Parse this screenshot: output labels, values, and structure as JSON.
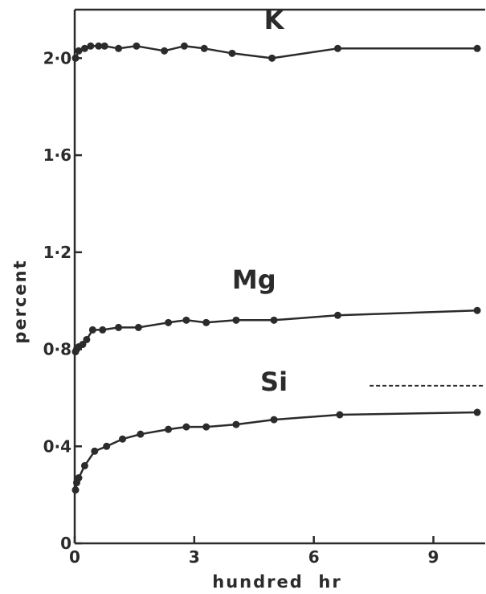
{
  "chart_data": {
    "type": "line",
    "xlabel": "hundred  hr",
    "ylabel": "percent",
    "xlim": [
      0,
      10.3
    ],
    "ylim": [
      0,
      2.2
    ],
    "xticks": [
      {
        "value": 0,
        "label": "0"
      },
      {
        "value": 3,
        "label": "3"
      },
      {
        "value": 6,
        "label": "6"
      },
      {
        "value": 9,
        "label": "9"
      }
    ],
    "yticks": [
      {
        "value": 0,
        "label": "0"
      },
      {
        "value": 0.4,
        "label": "0·4"
      },
      {
        "value": 0.8,
        "label": "0·8"
      },
      {
        "value": 1.2,
        "label": "1·2"
      },
      {
        "value": 1.6,
        "label": "1·6"
      },
      {
        "value": 2.0,
        "label": "2·0"
      }
    ],
    "grid": false,
    "series": [
      {
        "name": "K",
        "x": [
          0.02,
          0.1,
          0.25,
          0.4,
          0.6,
          0.75,
          1.1,
          1.55,
          2.25,
          2.75,
          3.25,
          3.95,
          4.95,
          6.6,
          10.1
        ],
        "y": [
          2.0,
          2.03,
          2.04,
          2.05,
          2.05,
          2.05,
          2.04,
          2.05,
          2.03,
          2.05,
          2.04,
          2.02,
          2.0,
          2.04,
          2.04
        ]
      },
      {
        "name": "Mg",
        "x": [
          0.02,
          0.05,
          0.1,
          0.2,
          0.3,
          0.45,
          0.7,
          1.1,
          1.6,
          2.35,
          2.8,
          3.3,
          4.05,
          5.0,
          6.6,
          10.1
        ],
        "y": [
          0.79,
          0.8,
          0.81,
          0.82,
          0.84,
          0.88,
          0.88,
          0.89,
          0.89,
          0.91,
          0.92,
          0.91,
          0.92,
          0.92,
          0.94,
          0.96
        ]
      },
      {
        "name": "Si",
        "x": [
          0.02,
          0.05,
          0.1,
          0.25,
          0.5,
          0.8,
          1.2,
          1.65,
          2.35,
          2.8,
          3.3,
          4.05,
          5.0,
          6.65,
          10.1
        ],
        "y": [
          0.22,
          0.25,
          0.27,
          0.32,
          0.38,
          0.4,
          0.43,
          0.45,
          0.47,
          0.48,
          0.48,
          0.49,
          0.51,
          0.53,
          0.54
        ]
      }
    ],
    "reference_line": {
      "style": "dashed",
      "y": 0.65,
      "x_from": 7.4,
      "x_to": 10.3
    },
    "colors": {
      "ink": "#2b2b2b",
      "background": "#ffffff"
    }
  }
}
